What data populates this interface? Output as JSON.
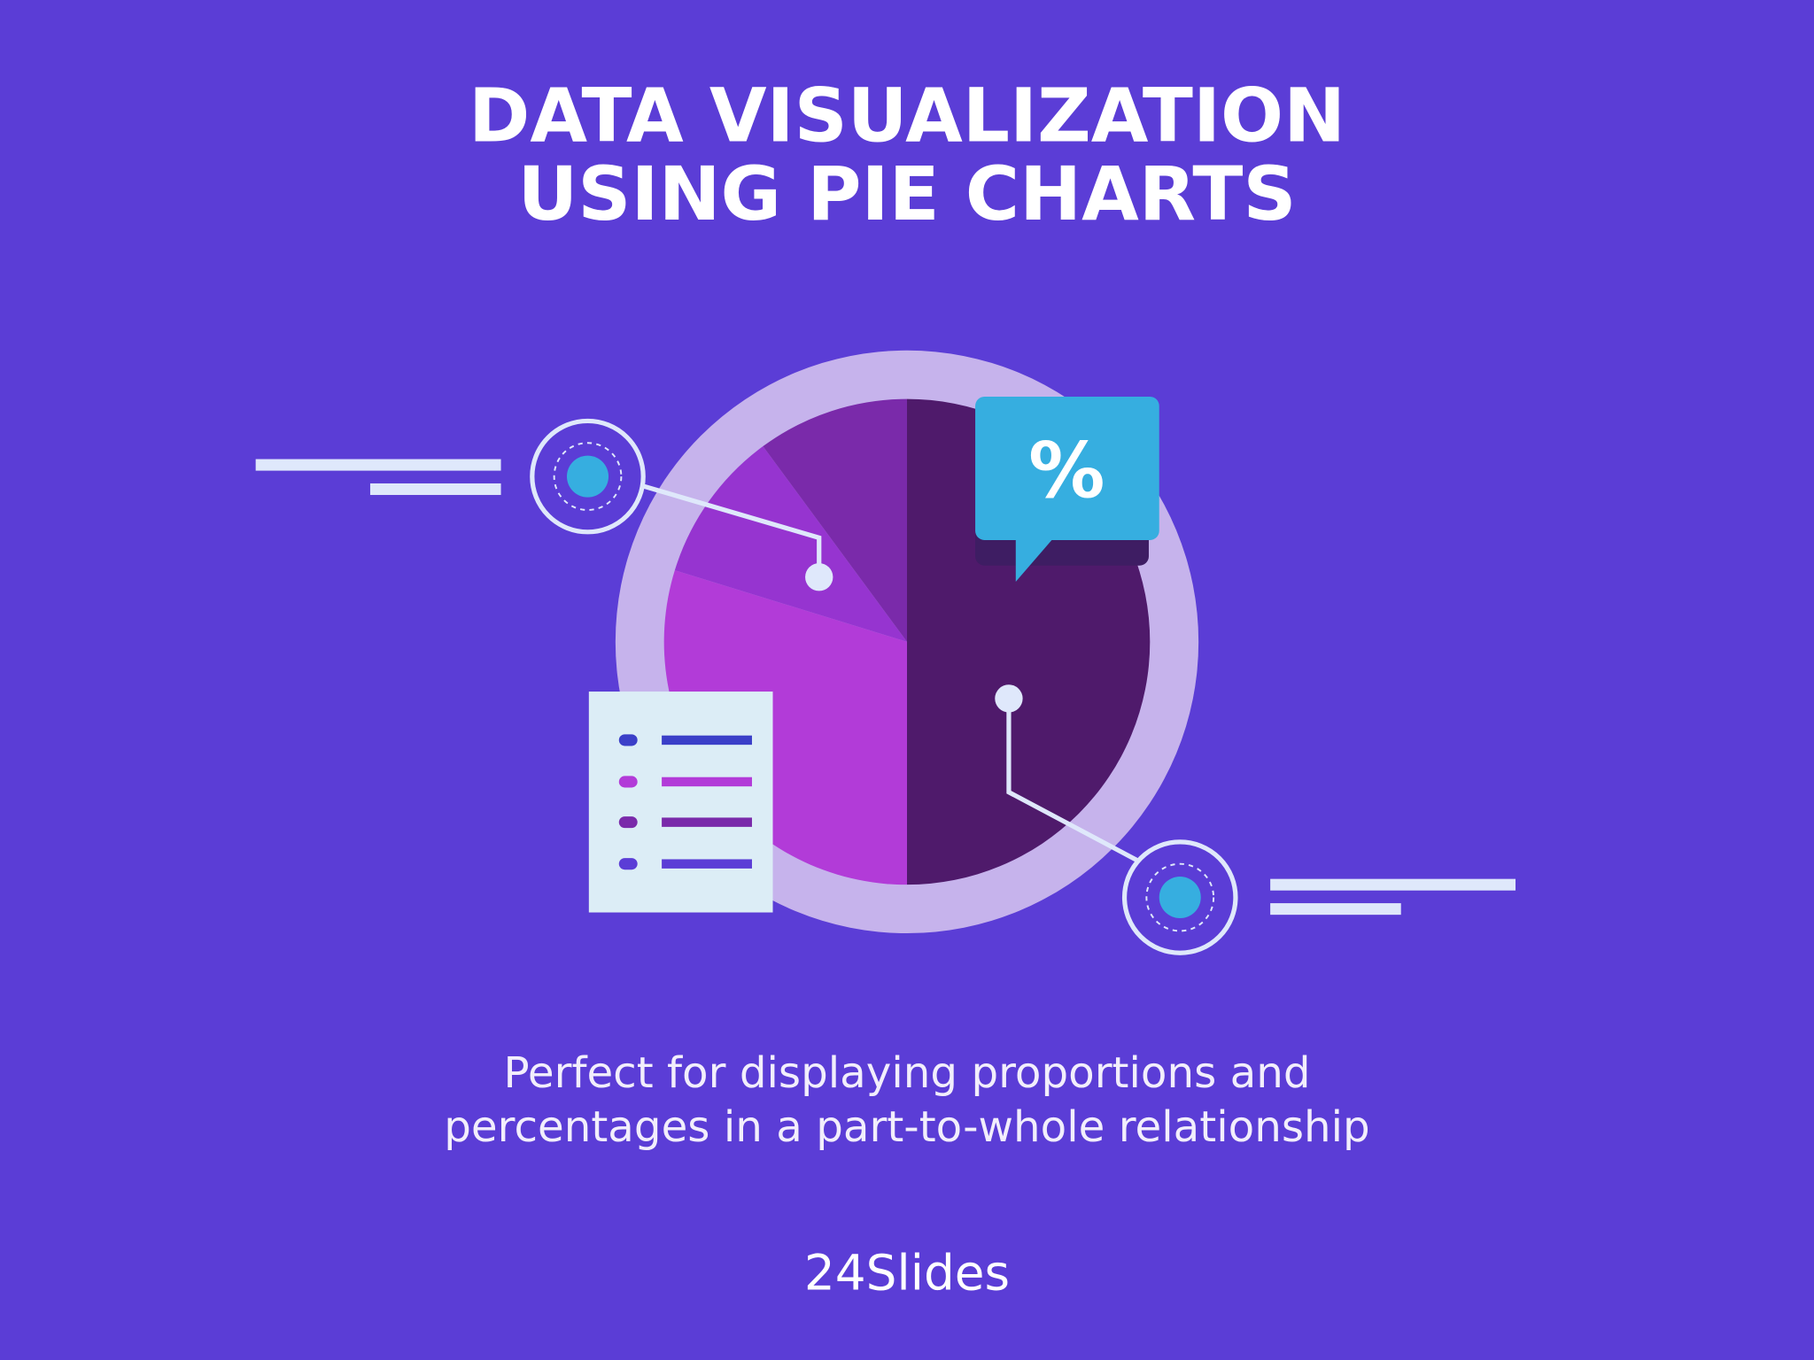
{
  "header": {
    "title_lines": [
      "DATA VISUALIZATION",
      "USING PIE CHARTS"
    ]
  },
  "badge": {
    "symbol": "%"
  },
  "caption": {
    "lines": [
      "Perfect for displaying proportions and",
      "percentages in a part-to-whole relationship"
    ]
  },
  "brand": {
    "logo": "24Slides"
  }
}
